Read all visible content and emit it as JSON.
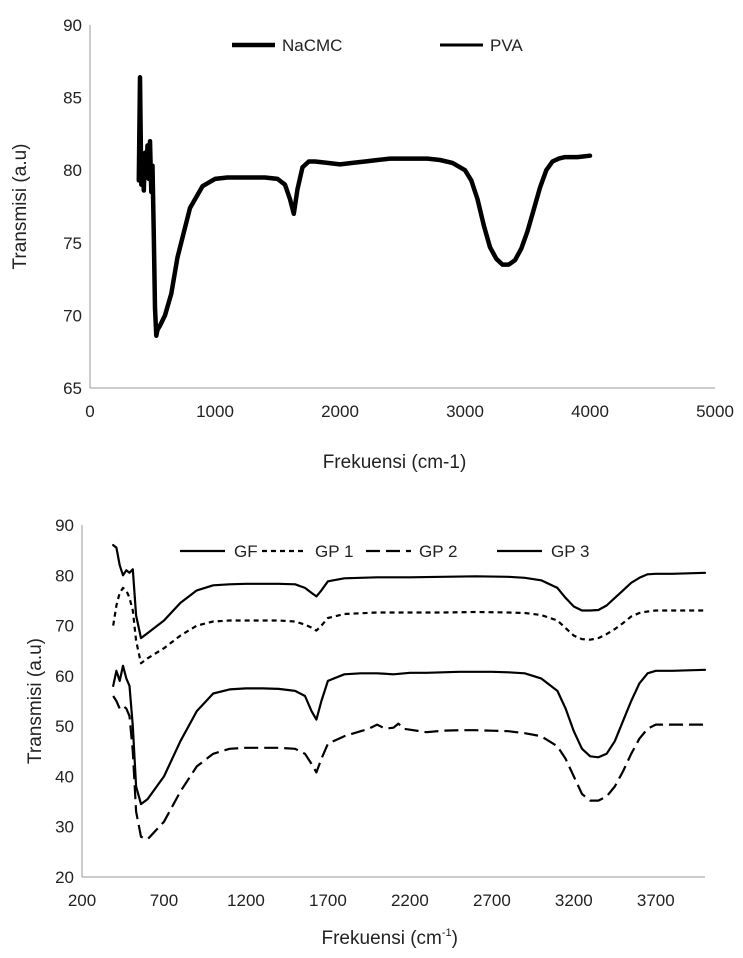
{
  "chart_data": [
    {
      "type": "line",
      "xlabel": "Frekuensi (cm-1)",
      "ylabel": "Transmisi (a.u)",
      "xlim": [
        0,
        5000
      ],
      "ylim": [
        65,
        90
      ],
      "xticks": [
        0,
        1000,
        2000,
        3000,
        4000,
        5000
      ],
      "yticks": [
        65,
        70,
        75,
        80,
        85,
        90
      ],
      "xtick_labels": [
        "0",
        "1000",
        "2000",
        "3000",
        "4000",
        "5000"
      ],
      "ytick_labels": [
        "65",
        "70",
        "75",
        "80",
        "85",
        "90"
      ],
      "grid": false,
      "legend_position": "top",
      "series": [
        {
          "name": "NaCMC",
          "style": "solid",
          "x": [
            390,
            400,
            410,
            420,
            430,
            440,
            450,
            460,
            470,
            480,
            490,
            500,
            510,
            520,
            530,
            540,
            560,
            600,
            650,
            700,
            800,
            900,
            1000,
            1100,
            1200,
            1300,
            1400,
            1500,
            1560,
            1600,
            1630,
            1660,
            1700,
            1750,
            1800,
            1900,
            2000,
            2100,
            2200,
            2300,
            2400,
            2500,
            2600,
            2700,
            2800,
            2900,
            3000,
            3050,
            3100,
            3150,
            3200,
            3250,
            3300,
            3350,
            3400,
            3450,
            3500,
            3550,
            3600,
            3650,
            3700,
            3750,
            3800,
            3900,
            4000
          ],
          "values": [
            79.3,
            86.4,
            79.0,
            80.5,
            78.6,
            81.2,
            79.5,
            81.7,
            79.4,
            82.0,
            78.5,
            80.3,
            75.5,
            70.5,
            68.6,
            69.0,
            69.3,
            70.0,
            71.5,
            74.0,
            77.4,
            78.9,
            79.4,
            79.5,
            79.5,
            79.5,
            79.5,
            79.4,
            79.0,
            78.0,
            77.0,
            78.7,
            80.2,
            80.6,
            80.6,
            80.5,
            80.4,
            80.5,
            80.6,
            80.7,
            80.8,
            80.8,
            80.8,
            80.8,
            80.7,
            80.5,
            80.0,
            79.3,
            78.0,
            76.2,
            74.7,
            73.9,
            73.5,
            73.5,
            73.8,
            74.6,
            75.8,
            77.3,
            78.8,
            80.0,
            80.6,
            80.8,
            80.9,
            80.9,
            81.0
          ]
        },
        {
          "name": "PVA",
          "style": "solid",
          "x": [
            390,
            400,
            410,
            420,
            430,
            440,
            450,
            460,
            470,
            480,
            490,
            500,
            510,
            520,
            530,
            540,
            560,
            600,
            650,
            700,
            800,
            900,
            1000,
            1100,
            1200,
            1300,
            1400,
            1500,
            1560,
            1600,
            1630,
            1660,
            1700,
            1750,
            1800,
            1900,
            2000,
            2100,
            2200,
            2300,
            2400,
            2500,
            2600,
            2700,
            2800,
            2900,
            3000,
            3050,
            3100,
            3150,
            3200,
            3250,
            3300,
            3350,
            3400,
            3450,
            3500,
            3550,
            3600,
            3650,
            3700,
            3750,
            3800,
            3900,
            4000
          ],
          "values": [
            79.3,
            86.4,
            79.0,
            80.5,
            78.6,
            81.2,
            79.5,
            81.7,
            79.4,
            82.0,
            78.5,
            80.3,
            75.5,
            70.5,
            68.6,
            69.0,
            69.3,
            70.0,
            71.5,
            74.0,
            77.4,
            78.9,
            79.4,
            79.5,
            79.5,
            79.5,
            79.5,
            79.4,
            79.0,
            78.0,
            77.0,
            78.7,
            80.2,
            80.6,
            80.6,
            80.5,
            80.4,
            80.5,
            80.6,
            80.7,
            80.8,
            80.8,
            80.8,
            80.8,
            80.7,
            80.5,
            80.0,
            79.3,
            78.0,
            76.2,
            74.7,
            73.9,
            73.5,
            73.5,
            73.8,
            74.6,
            75.8,
            77.3,
            78.8,
            80.0,
            80.6,
            80.8,
            80.9,
            80.9,
            81.0
          ]
        }
      ]
    },
    {
      "type": "line",
      "xlabel": "Frekuensi  (cm",
      "xlabel_superscript": "-1",
      "xlabel_suffix": ")",
      "ylabel": "Transmisi (a.u)",
      "xlim": [
        200,
        4000
      ],
      "ylim": [
        20,
        90
      ],
      "xticks": [
        200,
        700,
        1200,
        1700,
        2200,
        2700,
        3200,
        3700
      ],
      "yticks": [
        20,
        30,
        40,
        50,
        60,
        70,
        80,
        90
      ],
      "xtick_labels": [
        "200",
        "700",
        "1200",
        "1700",
        "2200",
        "2700",
        "3200",
        "3700"
      ],
      "ytick_labels": [
        "20",
        "30",
        "40",
        "50",
        "60",
        "70",
        "80",
        "90"
      ],
      "grid": false,
      "legend_position": "top",
      "series": [
        {
          "name": "GF",
          "style": "solid",
          "x": [
            390,
            410,
            430,
            450,
            470,
            490,
            510,
            530,
            560,
            600,
            700,
            800,
            900,
            1000,
            1100,
            1200,
            1300,
            1400,
            1500,
            1560,
            1600,
            1630,
            1660,
            1700,
            1800,
            2000,
            2200,
            2400,
            2600,
            2800,
            2900,
            3000,
            3100,
            3150,
            3200,
            3250,
            3300,
            3350,
            3400,
            3450,
            3500,
            3550,
            3600,
            3650,
            3700,
            3800,
            4000
          ],
          "values": [
            86,
            85.5,
            82,
            80,
            81,
            80.5,
            81.2,
            72,
            67.5,
            68.5,
            71,
            74.5,
            77,
            78,
            78.2,
            78.3,
            78.3,
            78.3,
            78.2,
            77.5,
            76.5,
            75.8,
            77,
            78.8,
            79.4,
            79.6,
            79.6,
            79.7,
            79.8,
            79.7,
            79.5,
            79,
            77.5,
            75.5,
            73.8,
            73,
            73,
            73.1,
            74,
            75.5,
            77,
            78.5,
            79.5,
            80.2,
            80.3,
            80.3,
            80.5
          ]
        },
        {
          "name": "GP 1",
          "style": "short-dash",
          "x": [
            390,
            410,
            430,
            450,
            470,
            490,
            510,
            530,
            560,
            600,
            700,
            800,
            900,
            1000,
            1100,
            1200,
            1300,
            1400,
            1500,
            1560,
            1600,
            1630,
            1660,
            1700,
            1800,
            2000,
            2200,
            2400,
            2600,
            2800,
            2900,
            3000,
            3100,
            3150,
            3200,
            3250,
            3300,
            3350,
            3400,
            3450,
            3500,
            3550,
            3600,
            3650,
            3700,
            3800,
            4000
          ],
          "values": [
            70,
            74,
            76.5,
            77.5,
            77,
            75.5,
            73,
            67,
            62.5,
            63.5,
            65.5,
            68,
            70,
            70.8,
            71,
            71,
            71,
            71,
            70.8,
            70.2,
            69.6,
            69.0,
            70.0,
            71.5,
            72.3,
            72.6,
            72.6,
            72.6,
            72.7,
            72.6,
            72.5,
            72.1,
            71,
            69.5,
            68.0,
            67.3,
            67.2,
            67.5,
            68.3,
            69.3,
            70.5,
            71.8,
            72.5,
            72.8,
            73,
            73,
            73
          ]
        },
        {
          "name": "GP 2",
          "style": "long-dash",
          "x": [
            390,
            410,
            430,
            450,
            470,
            490,
            510,
            530,
            560,
            600,
            700,
            800,
            900,
            1000,
            1100,
            1200,
            1300,
            1400,
            1500,
            1560,
            1600,
            1630,
            1660,
            1700,
            1800,
            1900,
            1950,
            2000,
            2050,
            2100,
            2130,
            2160,
            2200,
            2300,
            2400,
            2500,
            2600,
            2700,
            2800,
            2900,
            3000,
            3100,
            3150,
            3200,
            3250,
            3300,
            3350,
            3400,
            3450,
            3500,
            3550,
            3600,
            3650,
            3700,
            3800,
            4000
          ],
          "values": [
            56,
            55,
            53.5,
            54,
            53.5,
            52,
            45,
            33,
            28,
            27.5,
            31,
            37,
            42,
            44.5,
            45.5,
            45.7,
            45.7,
            45.7,
            45.5,
            44.5,
            42.5,
            40.8,
            43.5,
            46.5,
            48,
            49,
            49.5,
            50.3,
            49.5,
            49.7,
            50.5,
            49.5,
            49.3,
            48.8,
            49.1,
            49.2,
            49.2,
            49.1,
            49.0,
            48.6,
            48,
            46,
            43.5,
            40,
            36.5,
            35.2,
            35.2,
            36,
            38,
            41,
            44.5,
            47.5,
            49.5,
            50.3,
            50.3,
            50.3
          ]
        },
        {
          "name": "GP 3",
          "style": "solid",
          "x": [
            390,
            410,
            430,
            450,
            470,
            490,
            510,
            530,
            560,
            600,
            700,
            800,
            900,
            1000,
            1100,
            1200,
            1300,
            1400,
            1500,
            1560,
            1600,
            1630,
            1660,
            1700,
            1800,
            1900,
            2000,
            2100,
            2200,
            2300,
            2400,
            2500,
            2600,
            2700,
            2800,
            2900,
            3000,
            3100,
            3150,
            3200,
            3250,
            3300,
            3350,
            3400,
            3450,
            3500,
            3550,
            3600,
            3650,
            3700,
            3800,
            4000
          ],
          "values": [
            58,
            61,
            59,
            62,
            59.5,
            58,
            50,
            38,
            34.5,
            35.5,
            40,
            47,
            53,
            56.5,
            57.3,
            57.5,
            57.5,
            57.4,
            57,
            56,
            53,
            51.3,
            55,
            59,
            60.3,
            60.5,
            60.5,
            60.3,
            60.6,
            60.6,
            60.7,
            60.8,
            60.8,
            60.8,
            60.7,
            60.5,
            59.5,
            57,
            53.5,
            49,
            45.5,
            44,
            43.8,
            44.5,
            47,
            51,
            55,
            58.5,
            60.5,
            61,
            61,
            61.2
          ]
        }
      ]
    }
  ]
}
